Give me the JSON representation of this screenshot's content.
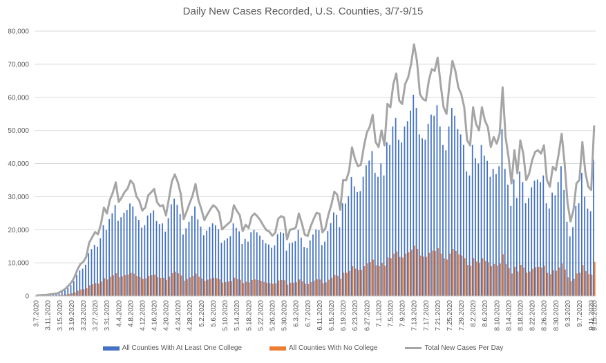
{
  "chart_data": {
    "type": "bar",
    "title": "Daily New Cases Recorded, U.S. Counties, 3/7-9/15",
    "xlabel": "",
    "ylabel": "",
    "ylim": [
      0,
      80000
    ],
    "yticks": [
      "0",
      "10,000",
      "20,000",
      "30,000",
      "40,000",
      "50,000",
      "60,000",
      "70,000",
      "80,000"
    ],
    "ytick_values": [
      0,
      10000,
      20000,
      30000,
      40000,
      50000,
      60000,
      70000,
      80000
    ],
    "xtick_labels": [
      "3.7.2020",
      "3.11.2020",
      "3.15.2020",
      "3.19.2020",
      "3.23.2020",
      "3.27.2020",
      "3.31.2020",
      "4.4.2020",
      "4.8.2020",
      "4.12.2020",
      "4.16.2020",
      "4.20.2020",
      "4.24.2020",
      "4.28.2020",
      "5.2.2020",
      "5.6.2020",
      "5.10.2020",
      "5.14.2020",
      "5.18.2020",
      "5.22.2020",
      "5.26.2020",
      "5.30.2020",
      "6.3.2020",
      "6.7.2020",
      "6.11.2020",
      "6.15.2020",
      "6.19.2020",
      "6.23.2020",
      "6.27.2020",
      "7.1.2020",
      "7.5.2020",
      "7.9.2020",
      "7.13.2020",
      "7.17.2020",
      "7.21.2020",
      "7.25.2020",
      "7.29.2020",
      "8.2.2020",
      "8.6.2020",
      "8.10.2020",
      "8.14.2020",
      "8.18.2020",
      "8.22.2020",
      "8.26.2020",
      "8.30.2020",
      "9.3.2020",
      "9.7.2020",
      "9.11.2020",
      "9.15.2020"
    ],
    "legend_placement": "bottom",
    "grid": true,
    "series": [
      {
        "name": "All Counties With At Least One College",
        "type": "bar",
        "color": "#4472C4"
      },
      {
        "name": "All Counties With No College",
        "type": "bar",
        "color": "#ED7D31"
      },
      {
        "name": "Total New Cases Per Day",
        "type": "line",
        "color": "#A5A5A5"
      }
    ],
    "total": [
      100,
      200,
      300,
      300,
      400,
      500,
      600,
      700,
      1100,
      1600,
      2200,
      3100,
      4100,
      5600,
      7900,
      9600,
      10300,
      11800,
      16100,
      17700,
      19300,
      18600,
      21800,
      26700,
      24900,
      29000,
      31200,
      34300,
      28400,
      29700,
      31400,
      32400,
      34900,
      33800,
      30100,
      28700,
      25800,
      26700,
      30400,
      31300,
      32300,
      28300,
      27100,
      27400,
      24300,
      29400,
      34600,
      36700,
      34400,
      30900,
      23200,
      25500,
      28000,
      30300,
      33800,
      28900,
      26200,
      22900,
      24600,
      26100,
      27400,
      26700,
      25200,
      20100,
      21000,
      21800,
      22600,
      27400,
      25700,
      24400,
      19600,
      21500,
      20500,
      24000,
      24900,
      24000,
      22800,
      21200,
      19900,
      19400,
      18200,
      19100,
      23300,
      24100,
      23700,
      17100,
      20000,
      20200,
      20700,
      24900,
      22000,
      18500,
      18100,
      21000,
      23200,
      25100,
      24800,
      19200,
      20500,
      24500,
      27500,
      31500,
      30600,
      26000,
      35000,
      34900,
      37700,
      44900,
      41400,
      39200,
      39600,
      45000,
      49300,
      51100,
      54700,
      46500,
      45000,
      50000,
      45500,
      58000,
      57000,
      64000,
      67200,
      59000,
      58000,
      64000,
      66000,
      70000,
      76000,
      71000,
      61000,
      59500,
      59000,
      65000,
      68500,
      68000,
      72000,
      64000,
      57000,
      55000,
      64000,
      71000,
      68000,
      63000,
      61000,
      57000,
      47000,
      45500,
      57000,
      52000,
      50000,
      57000,
      53000,
      51000,
      45000,
      48000,
      46000,
      49000,
      63000,
      48000,
      42000,
      34000,
      44000,
      37000,
      47000,
      43000,
      35000,
      37000,
      41000,
      43500,
      44000,
      43000,
      45500,
      35000,
      33000,
      39000,
      38000,
      43000,
      49000,
      40000,
      28000,
      22500,
      26000,
      34000,
      35000,
      46500,
      37500,
      33000,
      32000,
      51500
    ],
    "college": [
      80,
      160,
      240,
      240,
      320,
      400,
      480,
      560,
      880,
      1280,
      1760,
      2480,
      3280,
      4480,
      6320,
      7680,
      8240,
      9440,
      12880,
      14160,
      15440,
      14880,
      17440,
      21360,
      19920,
      23200,
      24960,
      27440,
      22720,
      23760,
      25120,
      25920,
      27920,
      27040,
      24080,
      22960,
      20640,
      21360,
      24320,
      25040,
      25840,
      22640,
      21680,
      21920,
      19440,
      23520,
      27680,
      29360,
      27520,
      24720,
      18560,
      20400,
      22400,
      24240,
      27040,
      23120,
      20960,
      18320,
      19680,
      20880,
      21920,
      21360,
      20160,
      16080,
      16800,
      17440,
      18080,
      21920,
      20560,
      19520,
      15680,
      17200,
      16400,
      19200,
      19920,
      19200,
      18240,
      16960,
      15920,
      15520,
      14560,
      15280,
      18640,
      19280,
      18960,
      13680,
      16000,
      16160,
      16560,
      19920,
      17600,
      14800,
      14480,
      16800,
      18560,
      20080,
      19840,
      15360,
      16400,
      19600,
      22000,
      25200,
      24480,
      20800,
      28000,
      27920,
      30160,
      35920,
      33120,
      31360,
      31680,
      36000,
      39440,
      40880,
      43760,
      37200,
      36000,
      40000,
      36400,
      46400,
      45600,
      51200,
      53760,
      47200,
      46400,
      51200,
      52800,
      56000,
      60800,
      56800,
      48800,
      47600,
      47200,
      52000,
      54800,
      54400,
      57600,
      51200,
      45600,
      44000,
      51200,
      56800,
      54400,
      50400,
      48800,
      45600,
      37600,
      36400,
      45600,
      41600,
      40000,
      45600,
      42400,
      40800,
      36000,
      38400,
      36800,
      39200,
      50400,
      38400,
      33600,
      27200,
      35200,
      29600,
      37600,
      34400,
      28000,
      29600,
      32800,
      34800,
      35200,
      34400,
      36400,
      28000,
      26400,
      31200,
      30400,
      34400,
      39200,
      32000,
      22400,
      18000,
      20800,
      27200,
      28000,
      37200,
      30000,
      26400,
      25600,
      41200
    ],
    "nocollege": [
      20,
      40,
      60,
      60,
      80,
      100,
      120,
      140,
      220,
      320,
      440,
      620,
      820,
      1120,
      1580,
      1920,
      2060,
      2360,
      3220,
      3540,
      3860,
      3720,
      4360,
      5340,
      4980,
      5800,
      6240,
      6860,
      5680,
      5940,
      6280,
      6480,
      6980,
      6760,
      6020,
      5740,
      5160,
      5340,
      6080,
      6260,
      6460,
      5660,
      5420,
      5480,
      4860,
      5880,
      6920,
      7340,
      6880,
      6180,
      4640,
      5100,
      5600,
      6060,
      6760,
      5780,
      5240,
      4580,
      4920,
      5220,
      5480,
      5340,
      5040,
      4020,
      4200,
      4360,
      4520,
      5480,
      5140,
      4880,
      3920,
      4300,
      4100,
      4800,
      4980,
      4800,
      4560,
      4240,
      3980,
      3880,
      3640,
      3820,
      4660,
      4820,
      4740,
      3420,
      4000,
      4040,
      4140,
      4980,
      4400,
      3700,
      3620,
      4200,
      4640,
      5020,
      4960,
      3840,
      4100,
      4900,
      5500,
      6300,
      6120,
      5200,
      7000,
      6980,
      7540,
      8980,
      8280,
      7840,
      7920,
      9000,
      9860,
      10220,
      10940,
      9300,
      9000,
      10000,
      9100,
      11600,
      11400,
      12800,
      13440,
      11800,
      11600,
      12800,
      13200,
      14000,
      15200,
      14200,
      12200,
      11900,
      11800,
      13000,
      13700,
      13600,
      14400,
      12800,
      11400,
      11000,
      12800,
      14200,
      13600,
      12600,
      12200,
      11400,
      9400,
      9100,
      11400,
      10400,
      10000,
      11400,
      10600,
      10200,
      9000,
      9600,
      9200,
      9800,
      12600,
      9600,
      8400,
      6800,
      8800,
      7400,
      9400,
      8600,
      7000,
      7400,
      8200,
      8700,
      8800,
      8600,
      9100,
      7000,
      6600,
      7800,
      7600,
      8600,
      9800,
      8000,
      5600,
      4500,
      5200,
      6800,
      7000,
      9300,
      7500,
      6600,
      6400,
      10300
    ]
  }
}
